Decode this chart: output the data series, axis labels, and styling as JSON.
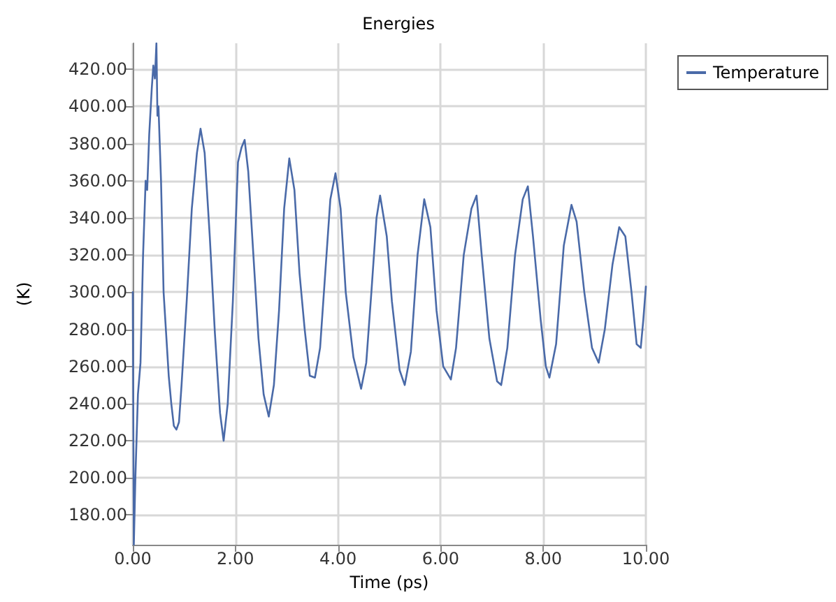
{
  "chart_data": {
    "type": "line",
    "title": "Energies",
    "xlabel": "Time (ps)",
    "ylabel": "(K)",
    "xlim": [
      0,
      10
    ],
    "xticks": [
      {
        "value": 0,
        "label": "0.00"
      },
      {
        "value": 2,
        "label": "2.00"
      },
      {
        "value": 4,
        "label": "4.00"
      },
      {
        "value": 6,
        "label": "6.00"
      },
      {
        "value": 8,
        "label": "8.00"
      },
      {
        "value": 10,
        "label": "10.00"
      }
    ],
    "ylim": [
      164,
      434
    ],
    "yticks": [
      {
        "value": 180,
        "label": "180.00"
      },
      {
        "value": 200,
        "label": "200.00"
      },
      {
        "value": 220,
        "label": "220.00"
      },
      {
        "value": 240,
        "label": "240.00"
      },
      {
        "value": 260,
        "label": "260.00"
      },
      {
        "value": 280,
        "label": "280.00"
      },
      {
        "value": 300,
        "label": "300.00"
      },
      {
        "value": 320,
        "label": "320.00"
      },
      {
        "value": 340,
        "label": "340.00"
      },
      {
        "value": 360,
        "label": "360.00"
      },
      {
        "value": 380,
        "label": "380.00"
      },
      {
        "value": 400,
        "label": "400.00"
      },
      {
        "value": 420,
        "label": "420.00"
      }
    ],
    "grid": true,
    "legend": "top right",
    "marker": "none",
    "line_style": "solid",
    "x": [
      0,
      0.02,
      0.05,
      0.1,
      0.15,
      0.2,
      0.25,
      0.28,
      0.32,
      0.37,
      0.4,
      0.43,
      0.46,
      0.48,
      0.5,
      0.55,
      0.6,
      0.7,
      0.75,
      0.8,
      0.85,
      0.9,
      0.95,
      1.05,
      1.15,
      1.25,
      1.32,
      1.4,
      1.5,
      1.6,
      1.7,
      1.77,
      1.85,
      1.95,
      2.05,
      2.12,
      2.18,
      2.25,
      2.35,
      2.45,
      2.55,
      2.65,
      2.75,
      2.85,
      2.95,
      3.05,
      3.15,
      3.25,
      3.35,
      3.45,
      3.55,
      3.65,
      3.75,
      3.85,
      3.95,
      4.05,
      4.15,
      4.3,
      4.45,
      4.55,
      4.65,
      4.75,
      4.82,
      4.95,
      5.05,
      5.2,
      5.3,
      5.42,
      5.55,
      5.68,
      5.8,
      5.92,
      6.05,
      6.2,
      6.3,
      6.45,
      6.6,
      6.7,
      6.8,
      6.95,
      7.1,
      7.18,
      7.3,
      7.45,
      7.6,
      7.7,
      7.8,
      7.95,
      8.05,
      8.12,
      8.25,
      8.4,
      8.55,
      8.65,
      8.8,
      8.95,
      9.08,
      9.2,
      9.35,
      9.48,
      9.6,
      9.72,
      9.82,
      9.9,
      9.95,
      10
    ],
    "series": [
      {
        "name": "Temperature",
        "color": "#4a6aa8",
        "values": [
          300,
          164,
          200,
          245,
          262,
          320,
          360,
          355,
          385,
          410,
          422,
          415,
          434,
          395,
          400,
          360,
          300,
          255,
          240,
          228,
          226,
          230,
          250,
          295,
          345,
          375,
          388,
          375,
          330,
          278,
          235,
          220,
          240,
          295,
          370,
          378,
          382,
          365,
          320,
          275,
          245,
          233,
          250,
          290,
          345,
          372,
          355,
          310,
          280,
          255,
          254,
          270,
          310,
          350,
          364,
          345,
          300,
          265,
          248,
          262,
          300,
          340,
          352,
          330,
          295,
          258,
          250,
          268,
          320,
          350,
          335,
          290,
          260,
          253,
          270,
          320,
          345,
          352,
          320,
          275,
          252,
          250,
          270,
          320,
          350,
          357,
          330,
          285,
          260,
          254,
          272,
          325,
          347,
          338,
          300,
          270,
          262,
          280,
          315,
          335,
          330,
          300,
          272,
          270,
          285,
          303
        ]
      }
    ]
  }
}
